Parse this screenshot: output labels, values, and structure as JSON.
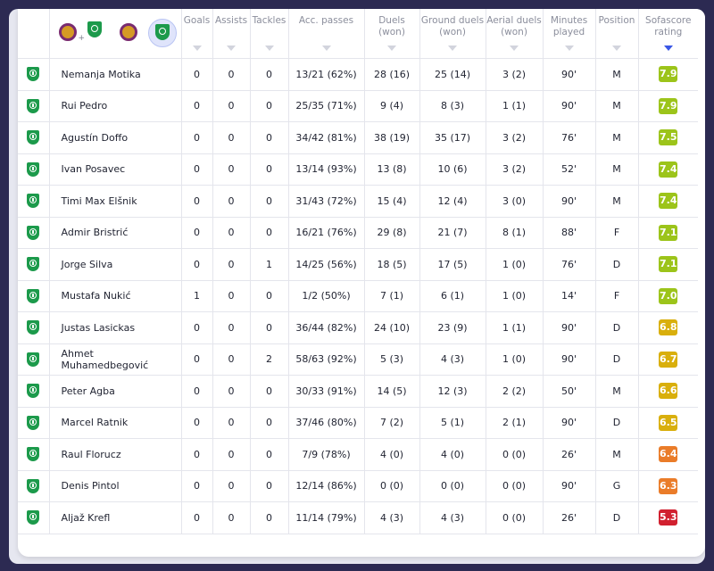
{
  "colors": {
    "rating_green": "#9cc41a",
    "rating_yellow": "#d9af0c",
    "rating_orange": "#ea7c29",
    "rating_red": "#d1202f",
    "team_green": "#1c9a4b",
    "sort_active": "#3a57e6"
  },
  "team_filter": {
    "icons": [
      "maribor-crest-icon",
      "olimpija-crest-icon",
      "maribor-crest-icon",
      "olimpija-crest-icon"
    ],
    "plus": "+"
  },
  "columns": {
    "goals": "Goals",
    "assists": "Assists",
    "tackles": "Tackles",
    "acc_passes": "Acc. passes",
    "duels": "Duels (won)",
    "ground_duels": "Ground duels (won)",
    "aerial_duels": "Aerial duels (won)",
    "minutes": "Minutes played",
    "position": "Position",
    "rating": "Sofascore rating"
  },
  "players": [
    {
      "name": "Nemanja Motika",
      "goals": "0",
      "assists": "0",
      "tackles": "0",
      "acc_passes": "13/21 (62%)",
      "duels": "28 (16)",
      "ground_duels": "25 (14)",
      "aerial_duels": "3 (2)",
      "minutes": "90'",
      "position": "M",
      "rating": "7.9",
      "rating_color": "#9cc41a"
    },
    {
      "name": "Rui Pedro",
      "goals": "0",
      "assists": "0",
      "tackles": "0",
      "acc_passes": "25/35 (71%)",
      "duels": "9 (4)",
      "ground_duels": "8 (3)",
      "aerial_duels": "1 (1)",
      "minutes": "90'",
      "position": "M",
      "rating": "7.9",
      "rating_color": "#9cc41a"
    },
    {
      "name": "Agustín Doffo",
      "goals": "0",
      "assists": "0",
      "tackles": "0",
      "acc_passes": "34/42 (81%)",
      "duels": "38 (19)",
      "ground_duels": "35 (17)",
      "aerial_duels": "3 (2)",
      "minutes": "76'",
      "position": "M",
      "rating": "7.5",
      "rating_color": "#9cc41a"
    },
    {
      "name": "Ivan Posavec",
      "goals": "0",
      "assists": "0",
      "tackles": "0",
      "acc_passes": "13/14 (93%)",
      "duels": "13 (8)",
      "ground_duels": "10 (6)",
      "aerial_duels": "3 (2)",
      "minutes": "52'",
      "position": "M",
      "rating": "7.4",
      "rating_color": "#9cc41a"
    },
    {
      "name": "Timi Max Elšnik",
      "goals": "0",
      "assists": "0",
      "tackles": "0",
      "acc_passes": "31/43 (72%)",
      "duels": "15 (4)",
      "ground_duels": "12 (4)",
      "aerial_duels": "3 (0)",
      "minutes": "90'",
      "position": "M",
      "rating": "7.4",
      "rating_color": "#9cc41a"
    },
    {
      "name": "Admir Bristrić",
      "goals": "0",
      "assists": "0",
      "tackles": "0",
      "acc_passes": "16/21 (76%)",
      "duels": "29 (8)",
      "ground_duels": "21 (7)",
      "aerial_duels": "8 (1)",
      "minutes": "88'",
      "position": "F",
      "rating": "7.1",
      "rating_color": "#9cc41a"
    },
    {
      "name": "Jorge Silva",
      "goals": "0",
      "assists": "0",
      "tackles": "1",
      "acc_passes": "14/25 (56%)",
      "duels": "18 (5)",
      "ground_duels": "17 (5)",
      "aerial_duels": "1 (0)",
      "minutes": "76'",
      "position": "D",
      "rating": "7.1",
      "rating_color": "#9cc41a"
    },
    {
      "name": "Mustafa Nukić",
      "goals": "1",
      "assists": "0",
      "tackles": "0",
      "acc_passes": "1/2 (50%)",
      "duels": "7 (1)",
      "ground_duels": "6 (1)",
      "aerial_duels": "1 (0)",
      "minutes": "14'",
      "position": "F",
      "rating": "7.0",
      "rating_color": "#9cc41a"
    },
    {
      "name": "Justas Lasickas",
      "goals": "0",
      "assists": "0",
      "tackles": "0",
      "acc_passes": "36/44 (82%)",
      "duels": "24 (10)",
      "ground_duels": "23 (9)",
      "aerial_duels": "1 (1)",
      "minutes": "90'",
      "position": "D",
      "rating": "6.8",
      "rating_color": "#d9af0c"
    },
    {
      "name": "Ahmet Muhamedbegović",
      "goals": "0",
      "assists": "0",
      "tackles": "2",
      "acc_passes": "58/63 (92%)",
      "duels": "5 (3)",
      "ground_duels": "4 (3)",
      "aerial_duels": "1 (0)",
      "minutes": "90'",
      "position": "D",
      "rating": "6.7",
      "rating_color": "#d9af0c"
    },
    {
      "name": "Peter Agba",
      "goals": "0",
      "assists": "0",
      "tackles": "0",
      "acc_passes": "30/33 (91%)",
      "duels": "14 (5)",
      "ground_duels": "12 (3)",
      "aerial_duels": "2 (2)",
      "minutes": "50'",
      "position": "M",
      "rating": "6.6",
      "rating_color": "#d9af0c"
    },
    {
      "name": "Marcel Ratnik",
      "goals": "0",
      "assists": "0",
      "tackles": "0",
      "acc_passes": "37/46 (80%)",
      "duels": "7 (2)",
      "ground_duels": "5 (1)",
      "aerial_duels": "2 (1)",
      "minutes": "90'",
      "position": "D",
      "rating": "6.5",
      "rating_color": "#d9af0c"
    },
    {
      "name": "Raul Florucz",
      "goals": "0",
      "assists": "0",
      "tackles": "0",
      "acc_passes": "7/9 (78%)",
      "duels": "4 (0)",
      "ground_duels": "4 (0)",
      "aerial_duels": "0 (0)",
      "minutes": "26'",
      "position": "M",
      "rating": "6.4",
      "rating_color": "#ea7c29"
    },
    {
      "name": "Denis Pintol",
      "goals": "0",
      "assists": "0",
      "tackles": "0",
      "acc_passes": "12/14 (86%)",
      "duels": "0 (0)",
      "ground_duels": "0 (0)",
      "aerial_duels": "0 (0)",
      "minutes": "90'",
      "position": "G",
      "rating": "6.3",
      "rating_color": "#ea7c29"
    },
    {
      "name": "Aljaž Krefl",
      "goals": "0",
      "assists": "0",
      "tackles": "0",
      "acc_passes": "11/14 (79%)",
      "duels": "4 (3)",
      "ground_duels": "4 (3)",
      "aerial_duels": "0 (0)",
      "minutes": "26'",
      "position": "D",
      "rating": "5.3",
      "rating_color": "#d1202f"
    }
  ]
}
